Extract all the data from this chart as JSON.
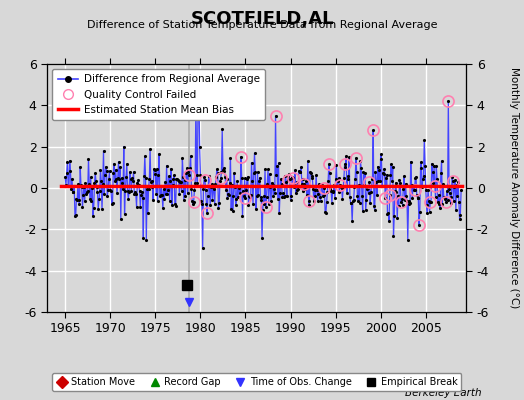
{
  "title": "SCOTFIELD,AL",
  "subtitle": "Difference of Station Temperature Data from Regional Average",
  "ylabel": "Monthly Temperature Anomaly Difference (°C)",
  "xlabel_years": [
    1965,
    1970,
    1975,
    1980,
    1985,
    1990,
    1995,
    2000,
    2005
  ],
  "xlim": [
    1963.0,
    2009.5
  ],
  "ylim": [
    -6,
    6
  ],
  "yticks": [
    -6,
    -4,
    -2,
    0,
    2,
    4,
    6
  ],
  "background_color": "#d8d8d8",
  "plot_bg_color": "#d8d8d8",
  "grid_color": "#ffffff",
  "line_color": "#4444ff",
  "marker_color": "#000000",
  "bias_color": "#ff0000",
  "bias_value": 0.1,
  "time_obs_year": 1978.75,
  "empirical_break_year": 1978.5,
  "empirical_break_y": -4.7,
  "watermark": "Berkeley Earth",
  "years_start": 1965,
  "years_end": 2008
}
